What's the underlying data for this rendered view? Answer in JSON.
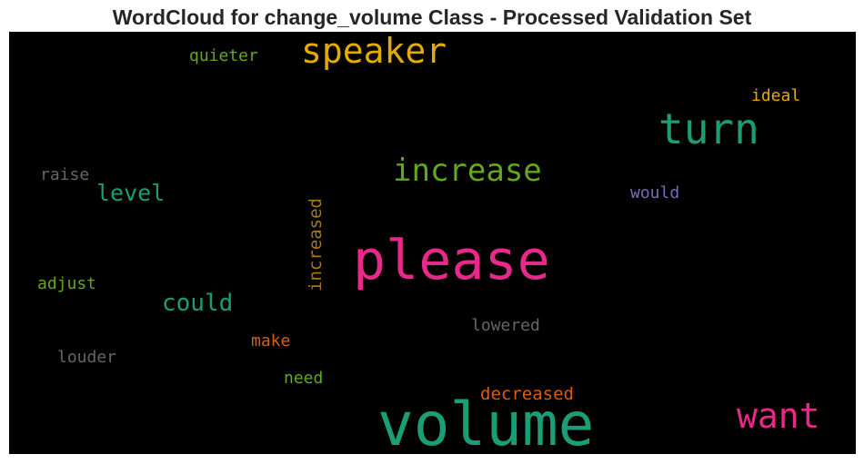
{
  "chart_data": {
    "type": "wordcloud",
    "title": "WordCloud for change_volume Class - Processed Validation Set",
    "background": "#000000",
    "words": [
      {
        "text": "volume",
        "color": "#1b9e77"
      },
      {
        "text": "please",
        "color": "#e7298a"
      },
      {
        "text": "turn",
        "color": "#1b9e77"
      },
      {
        "text": "speaker",
        "color": "#e6ab02"
      },
      {
        "text": "increase",
        "color": "#66a61e"
      },
      {
        "text": "want",
        "color": "#e7298a"
      },
      {
        "text": "could",
        "color": "#1b9e77"
      },
      {
        "text": "level",
        "color": "#1b9e77"
      },
      {
        "text": "increased",
        "color": "#a6761d"
      },
      {
        "text": "decreased",
        "color": "#d95f02"
      },
      {
        "text": "quieter",
        "color": "#66a61e"
      },
      {
        "text": "ideal",
        "color": "#e6ab02"
      },
      {
        "text": "raise",
        "color": "#666666"
      },
      {
        "text": "would",
        "color": "#7570b3"
      },
      {
        "text": "adjust",
        "color": "#66a61e"
      },
      {
        "text": "lowered",
        "color": "#666666"
      },
      {
        "text": "make",
        "color": "#d95f02"
      },
      {
        "text": "louder",
        "color": "#666666"
      },
      {
        "text": "need",
        "color": "#66a61e"
      }
    ]
  }
}
